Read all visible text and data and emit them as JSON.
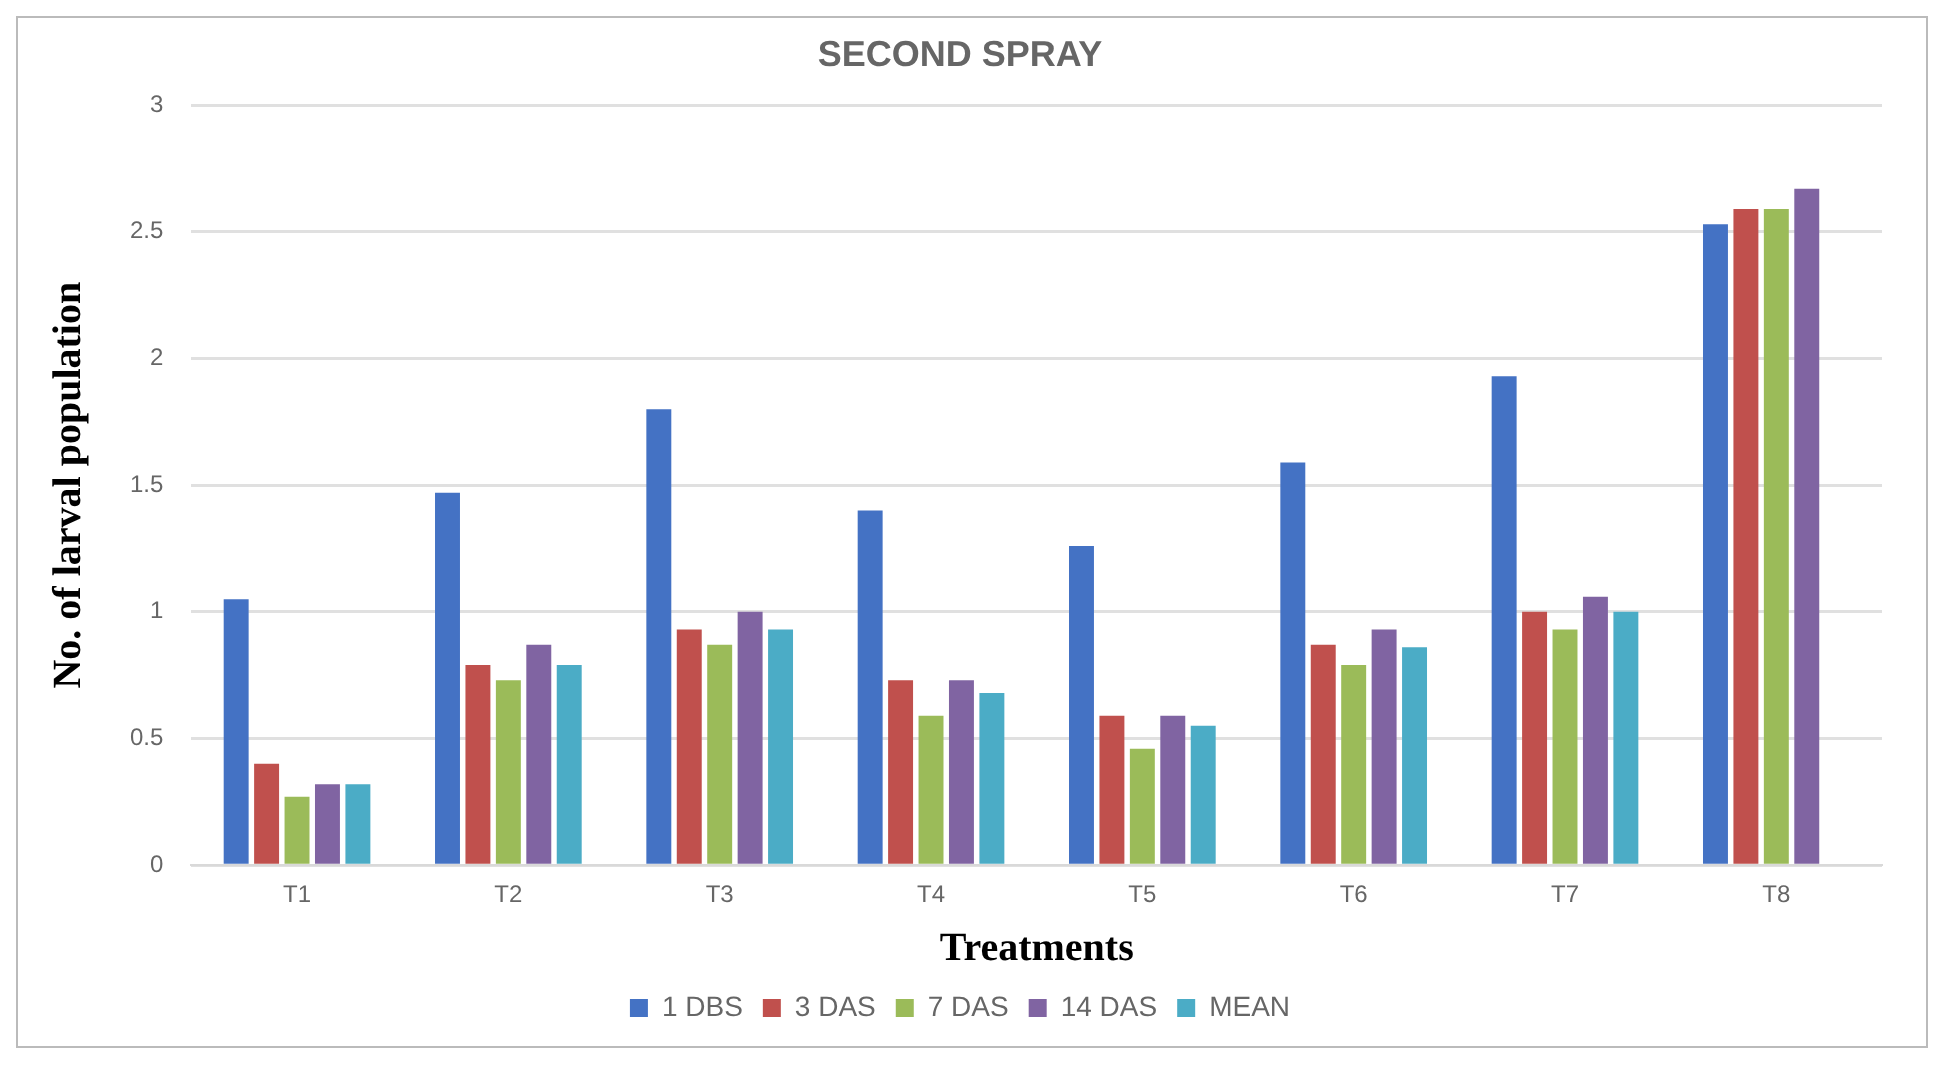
{
  "chart_data": {
    "type": "bar",
    "title": "SECOND SPRAY",
    "xlabel": "Treatments",
    "ylabel": "No. of larval population",
    "categories": [
      "T1",
      "T2",
      "T3",
      "T4",
      "T5",
      "T6",
      "T7",
      "T8"
    ],
    "series": [
      {
        "name": "1 DBS",
        "color": "#4472c4",
        "values": [
          1.05,
          1.47,
          1.8,
          1.4,
          1.26,
          1.59,
          1.93,
          2.53
        ]
      },
      {
        "name": "3 DAS",
        "color": "#c0504d",
        "values": [
          0.4,
          0.79,
          0.93,
          0.73,
          0.59,
          0.87,
          1.0,
          2.59
        ]
      },
      {
        "name": "7 DAS",
        "color": "#9bbb59",
        "values": [
          0.27,
          0.73,
          0.87,
          0.59,
          0.46,
          0.79,
          0.93,
          2.59
        ]
      },
      {
        "name": "14 DAS",
        "color": "#8064a2",
        "values": [
          0.32,
          0.87,
          1.0,
          0.73,
          0.59,
          0.93,
          1.06,
          2.67
        ]
      },
      {
        "name": "MEAN",
        "color": "#4bacc6",
        "values": [
          0.32,
          0.79,
          0.93,
          0.68,
          0.55,
          0.86,
          1.0,
          null
        ]
      }
    ],
    "ylim": [
      0,
      3
    ],
    "yticks": [
      0,
      0.5,
      1,
      1.5,
      2,
      2.5,
      3
    ],
    "grid": "y",
    "legend": "bottom"
  }
}
